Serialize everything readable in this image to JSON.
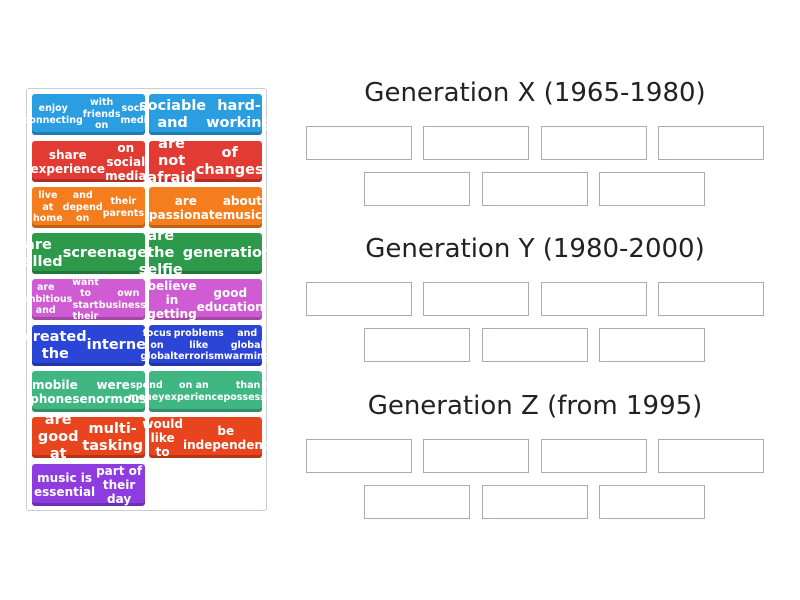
{
  "cards": [
    {
      "text": "enjoy connecting\nwith friends on\nsocial media",
      "color": "#2a9ee0",
      "size": "s"
    },
    {
      "text": "sociable and\nhard-working",
      "color": "#2a9ee0",
      "size": "l"
    },
    {
      "text": "share experience\non social media",
      "color": "#e23b34",
      "size": "m"
    },
    {
      "text": "are not afraid\nof changes",
      "color": "#e23b34",
      "size": "l"
    },
    {
      "text": "live at home\nand depend on\ntheir parents",
      "color": "#f47e1e",
      "size": "s"
    },
    {
      "text": "are passionate\nabout music",
      "color": "#f47e1e",
      "size": "m"
    },
    {
      "text": "are called\nscreenagers",
      "color": "#2c9a4a",
      "size": "l"
    },
    {
      "text": "are the selfie\ngeneration",
      "color": "#2c9a4a",
      "size": "l"
    },
    {
      "text": "are ambitious and\nwant to start their\nown businesses",
      "color": "#cf5cd3",
      "size": "s"
    },
    {
      "text": "believe in getting\ngood education",
      "color": "#cf5cd3",
      "size": "m"
    },
    {
      "text": "created the\ninternet",
      "color": "#2b45d6",
      "size": "l"
    },
    {
      "text": "focus on global\nproblems like terrorism\nand global warming",
      "color": "#2b45d6",
      "size": "s"
    },
    {
      "text": "mobile phones\nwere enormous",
      "color": "#40b783",
      "size": "m"
    },
    {
      "text": "spend money\non an experience\nthan a possession",
      "color": "#40b783",
      "size": "s"
    },
    {
      "text": "are good at\nmulti-tasking",
      "color": "#e8441d",
      "size": "l"
    },
    {
      "text": "would like to\nbe independent",
      "color": "#e8441d",
      "size": "m"
    },
    {
      "text": "music is essential\npart of their day",
      "color": "#8e3ce0",
      "size": "m"
    }
  ],
  "groups": [
    {
      "title": "Generation X (1965-1980)"
    },
    {
      "title": "Generation Y (1980-2000)"
    },
    {
      "title": "Generation Z (from 1995)"
    }
  ]
}
